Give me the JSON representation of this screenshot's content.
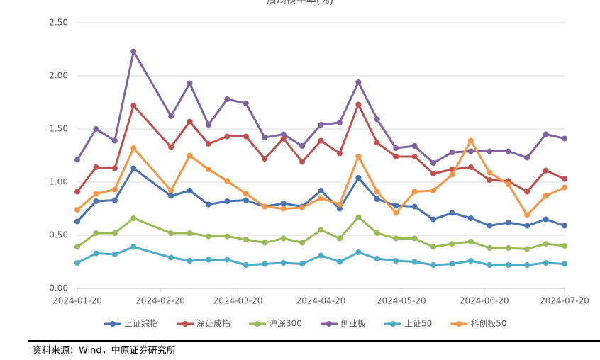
{
  "chart_data": {
    "type": "line",
    "title": "周均换手率(%)",
    "x": [
      "2024-01-20",
      "2024-01-27",
      "2024-02-03",
      "2024-02-10",
      "2024-02-24",
      "2024-03-02",
      "2024-03-09",
      "2024-03-16",
      "2024-03-23",
      "2024-03-30",
      "2024-04-06",
      "2024-04-13",
      "2024-04-20",
      "2024-04-27",
      "2024-05-04",
      "2024-05-11",
      "2024-05-18",
      "2024-05-25",
      "2024-06-01",
      "2024-06-08",
      "2024-06-15",
      "2024-06-22",
      "2024-06-29",
      "2024-07-06",
      "2024-07-13",
      "2024-07-20"
    ],
    "series": [
      {
        "name": "上证综指",
        "color": "#4a72b0",
        "values": [
          0.63,
          0.82,
          0.83,
          1.13,
          0.87,
          0.92,
          0.79,
          0.82,
          0.83,
          0.77,
          0.8,
          0.77,
          0.92,
          0.75,
          1.04,
          0.84,
          0.78,
          0.77,
          0.65,
          0.71,
          0.66,
          0.59,
          0.62,
          0.59,
          0.65,
          0.59
        ]
      },
      {
        "name": "深证成指",
        "color": "#c0504d",
        "values": [
          0.91,
          1.14,
          1.13,
          1.72,
          1.33,
          1.57,
          1.36,
          1.43,
          1.43,
          1.22,
          1.41,
          1.19,
          1.39,
          1.27,
          1.73,
          1.37,
          1.24,
          1.24,
          1.08,
          1.12,
          1.14,
          1.02,
          1.01,
          0.91,
          1.11,
          1.03
        ]
      },
      {
        "name": "沪深300",
        "color": "#9bbb59",
        "values": [
          0.39,
          0.52,
          0.52,
          0.66,
          0.52,
          0.52,
          0.49,
          0.49,
          0.46,
          0.43,
          0.47,
          0.43,
          0.55,
          0.47,
          0.67,
          0.52,
          0.47,
          0.47,
          0.39,
          0.42,
          0.44,
          0.38,
          0.38,
          0.37,
          0.42,
          0.4
        ]
      },
      {
        "name": "创业板",
        "color": "#8064a2",
        "values": [
          1.21,
          1.5,
          1.39,
          2.23,
          1.62,
          1.93,
          1.54,
          1.78,
          1.74,
          1.42,
          1.45,
          1.34,
          1.54,
          1.56,
          1.94,
          1.59,
          1.32,
          1.34,
          1.18,
          1.28,
          1.29,
          1.29,
          1.29,
          1.23,
          1.45,
          1.41
        ]
      },
      {
        "name": "上证50",
        "color": "#4bacc6",
        "values": [
          0.24,
          0.33,
          0.32,
          0.39,
          0.29,
          0.26,
          0.27,
          0.27,
          0.22,
          0.23,
          0.24,
          0.23,
          0.31,
          0.25,
          0.34,
          0.28,
          0.26,
          0.25,
          0.22,
          0.23,
          0.26,
          0.22,
          0.22,
          0.22,
          0.24,
          0.23
        ]
      },
      {
        "name": "科创板50",
        "color": "#f79646",
        "values": [
          0.74,
          0.89,
          0.93,
          1.32,
          0.92,
          1.25,
          1.12,
          1.01,
          0.89,
          0.77,
          0.75,
          0.76,
          0.85,
          0.79,
          1.24,
          0.91,
          0.71,
          0.91,
          0.92,
          1.07,
          1.39,
          1.09,
          0.98,
          0.69,
          0.87,
          0.95
        ]
      }
    ],
    "xlim": [
      "2024-01-20",
      "2024-07-20"
    ],
    "xticks": [
      "2024-01-20",
      "2024-02-20",
      "2024-03-20",
      "2024-04-20",
      "2024-05-20",
      "2024-06-20",
      "2024-07-20"
    ],
    "ylim": [
      0,
      2.5
    ],
    "yticks": [
      {
        "value": 0,
        "label": "0.00"
      },
      {
        "value": 0.5,
        "label": "0.50"
      },
      {
        "value": 1,
        "label": "1.00"
      },
      {
        "value": 1.5,
        "label": "1.50"
      },
      {
        "value": 2,
        "label": "2.00"
      },
      {
        "value": 2.5,
        "label": "2.50"
      }
    ],
    "grid": true,
    "legend": "bottom"
  },
  "source": "资料来源：Wind，中原证券研究所"
}
